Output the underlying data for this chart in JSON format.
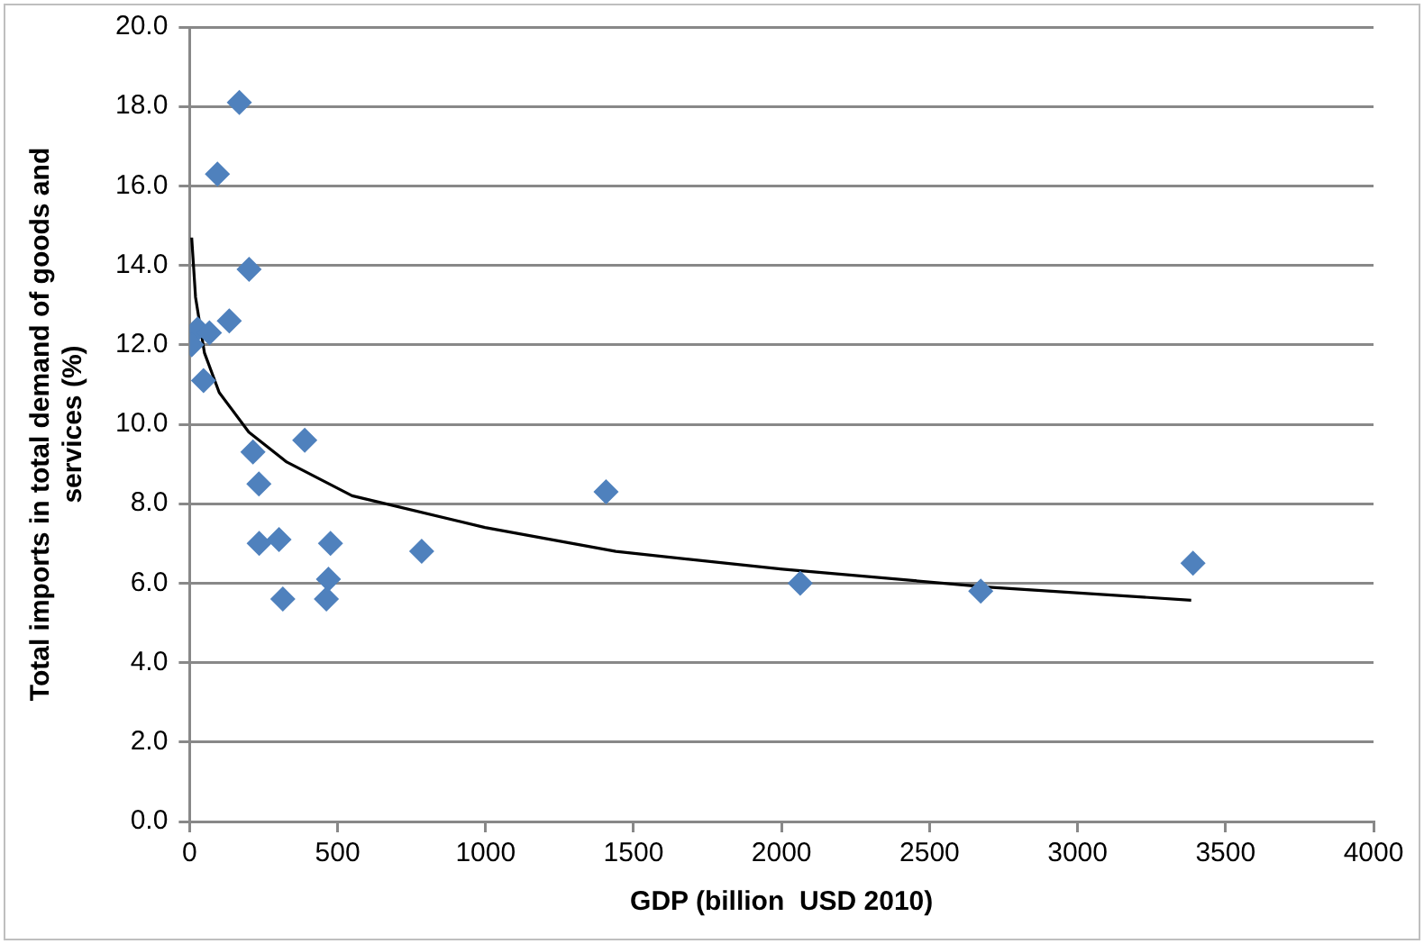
{
  "chart_data": {
    "type": "scatter",
    "xlabel": "GDP (billion  USD 2010)",
    "ylabel": "Total imports in total demand of goods and services (%)",
    "xlim": [
      0,
      4000
    ],
    "xticks": [
      0,
      500,
      1000,
      1500,
      2000,
      2500,
      3000,
      3500,
      4000
    ],
    "ylim": [
      0,
      20
    ],
    "yticks": [
      {
        "value": 0,
        "label": "0.0"
      },
      {
        "value": 2,
        "label": "2.0"
      },
      {
        "value": 4,
        "label": "4.0"
      },
      {
        "value": 6,
        "label": "6.0"
      },
      {
        "value": 8,
        "label": "8.0"
      },
      {
        "value": 10,
        "label": "10.0"
      },
      {
        "value": 12,
        "label": "12.0"
      },
      {
        "value": 14,
        "label": "14.0"
      },
      {
        "value": 16,
        "label": "16.0"
      },
      {
        "value": 18,
        "label": "18.0"
      },
      {
        "value": 20,
        "label": "20.0"
      }
    ],
    "grid": "y",
    "legend": false,
    "series": [
      {
        "type": "scatter",
        "color": "#4f81bd",
        "marker": "diamond",
        "x": [
          168,
          94,
          201,
          134,
          27,
          67,
          7,
          47,
          389,
          214,
          234,
          235,
          302,
          476,
          469,
          315,
          462,
          784,
          1407,
          2063,
          2673,
          3390
        ],
        "values": [
          18.1,
          16.3,
          13.9,
          12.6,
          12.4,
          12.3,
          12.0,
          11.1,
          9.6,
          9.3,
          8.5,
          7.0,
          7.1,
          7.0,
          6.1,
          5.6,
          5.6,
          6.8,
          8.3,
          6.0,
          5.8,
          6.5
        ]
      },
      {
        "type": "line",
        "color": "#000000",
        "marker": "none",
        "line_style": "solid",
        "x": [
          7,
          20,
          50,
          100,
          200,
          328,
          549,
          998,
          1440,
          2003,
          2700,
          3384
        ],
        "values": [
          14.7,
          13.2,
          11.8,
          10.8,
          9.8,
          9.05,
          8.2,
          7.4,
          6.8,
          6.35,
          5.9,
          5.57
        ]
      }
    ]
  }
}
